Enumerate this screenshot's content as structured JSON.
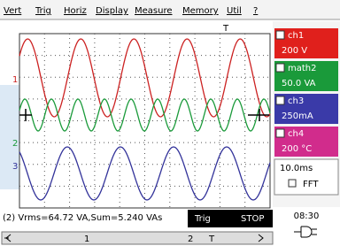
{
  "menu": [
    "Vert",
    "Trig",
    "Horiz",
    "Display",
    "Measure",
    "Memory",
    "Util",
    "?"
  ],
  "markers": {
    "trigger": "T",
    "ch1": "1",
    "ch2": "2",
    "ch3": "3"
  },
  "channels": [
    {
      "name": "ch1",
      "value": "200 V"
    },
    {
      "name": "math2",
      "value": "50.0 VA"
    },
    {
      "name": "ch3",
      "value": "250mA"
    },
    {
      "name": "ch4",
      "value": "200 °C"
    }
  ],
  "timebase": "10.0ms",
  "fft": "FFT",
  "measurement": "(2) Vrms=64.72 VA,Sum=5.240 VAs",
  "trig": "Trig",
  "stop": "STOP",
  "clock": "08:30",
  "scrollbar": [
    "1",
    "2",
    "T"
  ]
}
